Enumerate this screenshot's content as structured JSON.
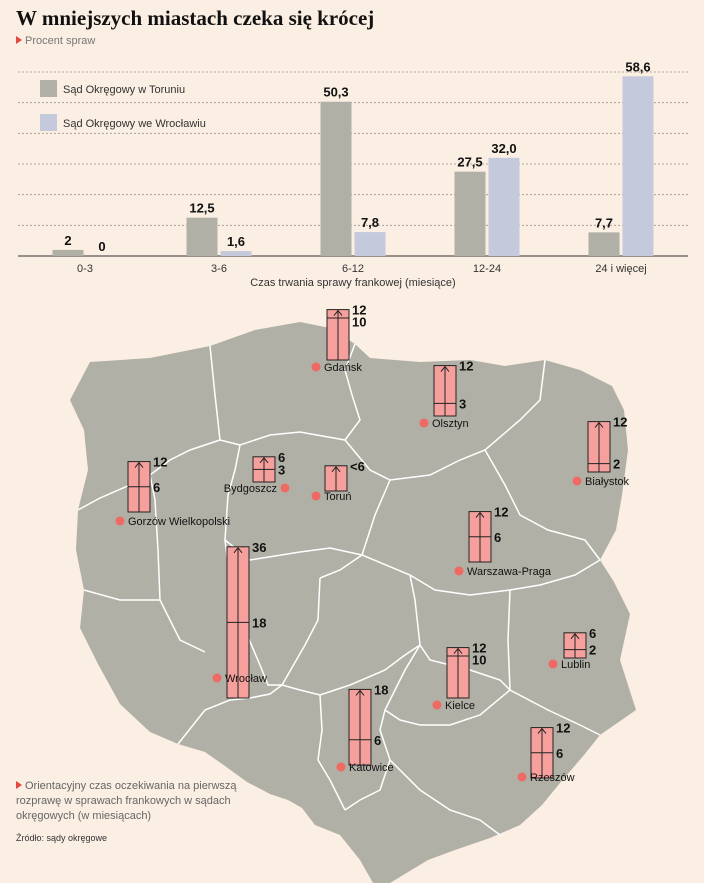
{
  "title": "W mniejszych miastach czeka się krócej",
  "subtitle": "Procent spraw",
  "chart_data": [
    {
      "type": "bar",
      "title": "W mniejszych miastach czeka się krócej",
      "ylabel": "Procent spraw",
      "xlabel": "Czas trwania sprawy frankowej (miesiące)",
      "categories": [
        "0-3",
        "3-6",
        "6-12",
        "12-24",
        "24 i więcej"
      ],
      "series": [
        {
          "name": "Sąd Okręgowy w Toruniu",
          "color": "#b1b0a6",
          "values": [
            2,
            12.5,
            50.3,
            27.5,
            7.7
          ],
          "labels": [
            "2",
            "12,5",
            "50,3",
            "27,5",
            "7,7"
          ]
        },
        {
          "name": "Sąd Okręgowy we Wrocławiu",
          "color": "#c5c9dc",
          "values": [
            0,
            1.6,
            7.8,
            32.0,
            58.6
          ],
          "labels": [
            "0",
            "1,6",
            "7,8",
            "32,0",
            "58,6"
          ]
        }
      ],
      "ylim": [
        0,
        60
      ],
      "grid": true,
      "legend": "top-left"
    },
    {
      "type": "bar",
      "title": "Orientacyjny czas oczekiwania na pierwszą rozprawę w sprawach frankowych w sądach okręgowych (w miesiącach)",
      "unit": "miesiące",
      "courts": [
        {
          "city": "Gdańsk",
          "max": 12,
          "min": 10,
          "max_label": "12",
          "min_label": "10"
        },
        {
          "city": "Olsztyn",
          "max": 12,
          "min": 3,
          "max_label": "12",
          "min_label": "3"
        },
        {
          "city": "Białystok",
          "max": 12,
          "min": 2,
          "max_label": "12",
          "min_label": "2"
        },
        {
          "city": "Bydgoszcz",
          "max": 6,
          "min": 3,
          "max_label": "6",
          "min_label": "3"
        },
        {
          "city": "Toruń",
          "max": 6,
          "min": null,
          "max_label": "<6",
          "min_label": ""
        },
        {
          "city": "Gorzów Wielkopolski",
          "max": 12,
          "min": 6,
          "max_label": "12",
          "min_label": "6"
        },
        {
          "city": "Warszawa-Praga",
          "max": 12,
          "min": 6,
          "max_label": "12",
          "min_label": "6"
        },
        {
          "city": "Wrocław",
          "max": 36,
          "min": 18,
          "max_label": "36",
          "min_label": "18"
        },
        {
          "city": "Lublin",
          "max": 6,
          "min": 2,
          "max_label": "6",
          "min_label": "2"
        },
        {
          "city": "Kielce",
          "max": 12,
          "min": 10,
          "max_label": "12",
          "min_label": "10"
        },
        {
          "city": "Katowice",
          "max": 18,
          "min": 6,
          "max_label": "18",
          "min_label": "6"
        },
        {
          "city": "Rzeszów",
          "max": 12,
          "min": 6,
          "max_label": "12",
          "min_label": "6"
        }
      ]
    }
  ],
  "note": "Orientacyjny czas oczekiwania na pierwszą rozprawę w sprawach frankowych w sądach okręgowych (w miesiącach)",
  "source": "Źródło: sądy okręgowe",
  "colors": {
    "background": "#fbeee3",
    "map_fill": "#b1b0a6",
    "map_border": "#ffffff",
    "range_box": "#f5a09c",
    "city_dot": "#ef6a63",
    "accent": "#e4473d"
  }
}
